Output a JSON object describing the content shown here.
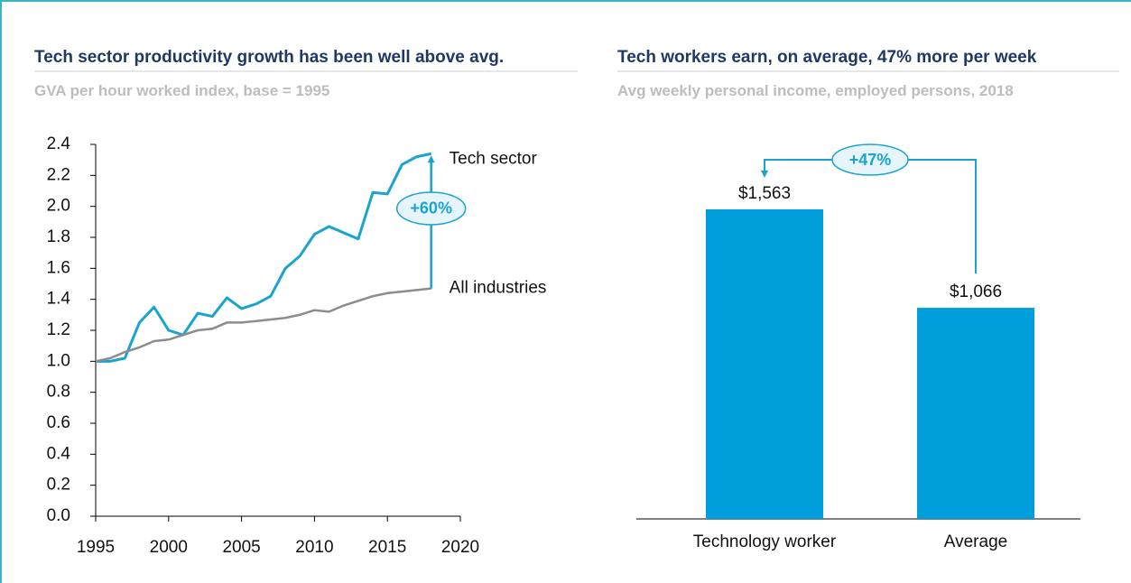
{
  "chart_data": [
    {
      "type": "line",
      "title": "Tech sector productivity growth has been well above avg.",
      "subtitle": "GVA per hour worked index, base = 1995",
      "x": [
        1995,
        1996,
        1997,
        1998,
        1999,
        2000,
        2001,
        2002,
        2003,
        2004,
        2005,
        2006,
        2007,
        2008,
        2009,
        2010,
        2011,
        2012,
        2013,
        2014,
        2015,
        2016,
        2017,
        2018
      ],
      "series": [
        {
          "name": "Tech sector",
          "color": "#1aa3cf",
          "values": [
            1.0,
            1.0,
            1.02,
            1.25,
            1.35,
            1.2,
            1.17,
            1.31,
            1.29,
            1.41,
            1.34,
            1.37,
            1.42,
            1.6,
            1.68,
            1.82,
            1.87,
            1.83,
            1.79,
            2.09,
            2.08,
            2.27,
            2.32,
            2.34
          ]
        },
        {
          "name": "All industries",
          "color": "#8c8c8c",
          "values": [
            1.0,
            1.02,
            1.06,
            1.09,
            1.13,
            1.14,
            1.17,
            1.2,
            1.21,
            1.25,
            1.25,
            1.26,
            1.27,
            1.28,
            1.3,
            1.33,
            1.32,
            1.36,
            1.39,
            1.42,
            1.44,
            1.45,
            1.46,
            1.47
          ]
        }
      ],
      "xlim": [
        1995,
        2020
      ],
      "xticks": [
        1995,
        2000,
        2005,
        2010,
        2015,
        2020
      ],
      "ylim": [
        0,
        2.4
      ],
      "yticks": [
        {
          "value": 0,
          "label": "0.0"
        },
        0.2,
        0.4,
        0.6,
        0.8,
        {
          "value": 1,
          "label": "1.0"
        },
        1.2,
        1.4,
        1.6,
        1.8,
        {
          "value": 2,
          "label": "2.0"
        },
        2.2,
        2.4
      ],
      "annotation": "+60%"
    },
    {
      "type": "bar",
      "title": "Tech workers earn, on average, 47% more per week",
      "subtitle": "Avg weekly personal income, employed persons, 2018",
      "categories": [
        "Technology worker",
        "Average"
      ],
      "values": [
        1563,
        1066
      ],
      "value_labels": [
        "$1,563",
        "$1,066"
      ],
      "color": "#009fdb",
      "annotation": "+47%"
    }
  ]
}
